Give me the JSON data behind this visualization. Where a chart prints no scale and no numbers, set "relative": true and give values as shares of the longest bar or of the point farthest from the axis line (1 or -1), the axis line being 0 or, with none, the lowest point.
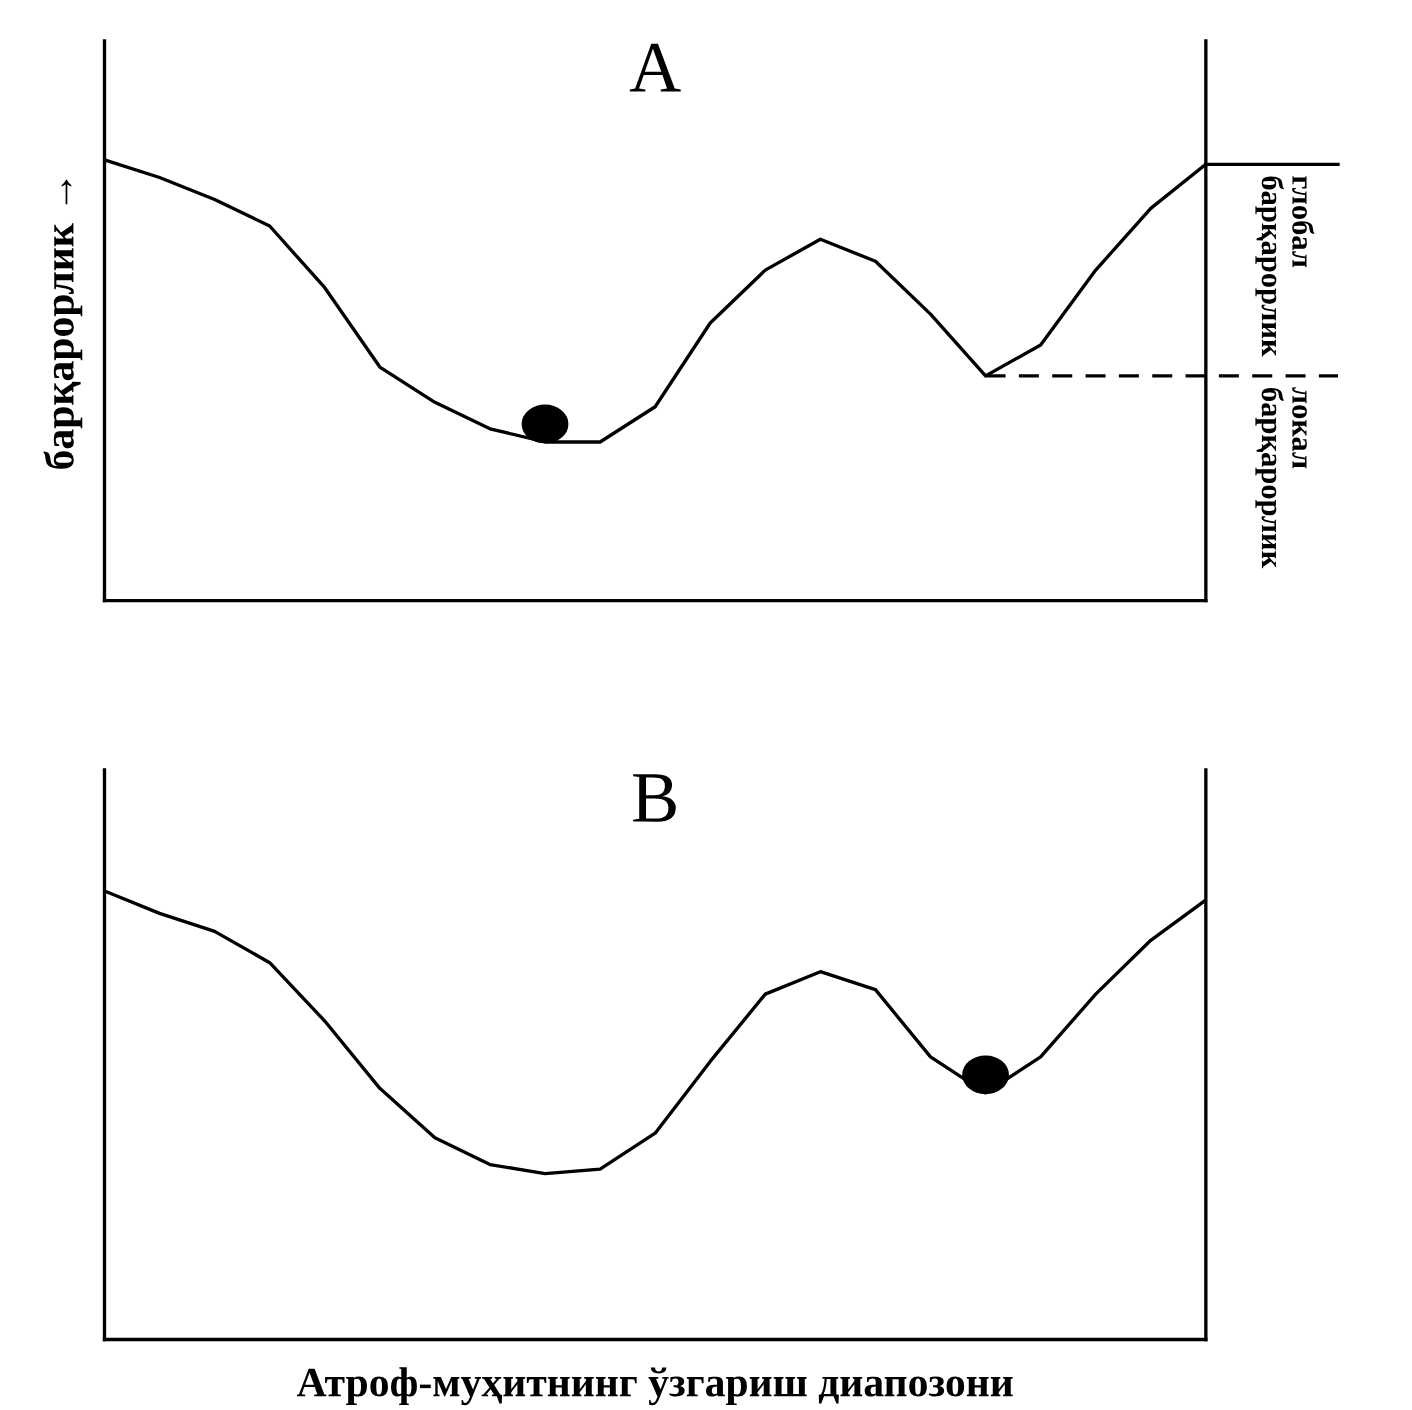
{
  "chart_data": [
    {
      "type": "line",
      "title": "A",
      "ylabel": "барқарорлик →",
      "relative": true,
      "categories": [
        null,
        null,
        null,
        null,
        null,
        null,
        null,
        null,
        null,
        null,
        null,
        null,
        null,
        null,
        null,
        null,
        null,
        null,
        null,
        null,
        null
      ],
      "series": [
        {
          "color": "#000000",
          "values": [
            1.0,
            0.96,
            0.91,
            0.85,
            0.71,
            0.53,
            0.45,
            0.39,
            0.36,
            0.36,
            0.44,
            0.63,
            0.75,
            0.82,
            0.77,
            0.65,
            0.51,
            0.58,
            0.75,
            0.89,
            0.99
          ]
        }
      ],
      "ref_lines": [
        {
          "axis": "y",
          "value": 0.99,
          "label": "глобал барқарорлик",
          "line_style": "solid",
          "color": "#000000"
        },
        {
          "axis": "y",
          "value": 0.51,
          "label": "локал барқарорлик",
          "line_style": "dashed",
          "color": "#000000"
        }
      ]
    },
    {
      "type": "line",
      "title": "B",
      "xlabel": "Атроф-муҳитнинг ўзгариш диапозони",
      "relative": true,
      "categories": [
        null,
        null,
        null,
        null,
        null,
        null,
        null,
        null,
        null,
        null,
        null,
        null,
        null,
        null,
        null,
        null,
        null,
        null,
        null,
        null,
        null
      ],
      "series": [
        {
          "color": "#000000",
          "values": [
            1.0,
            0.95,
            0.91,
            0.84,
            0.71,
            0.56,
            0.45,
            0.39,
            0.37,
            0.38,
            0.46,
            0.62,
            0.77,
            0.82,
            0.78,
            0.63,
            0.55,
            0.63,
            0.77,
            0.89,
            0.98
          ]
        }
      ]
    }
  ]
}
